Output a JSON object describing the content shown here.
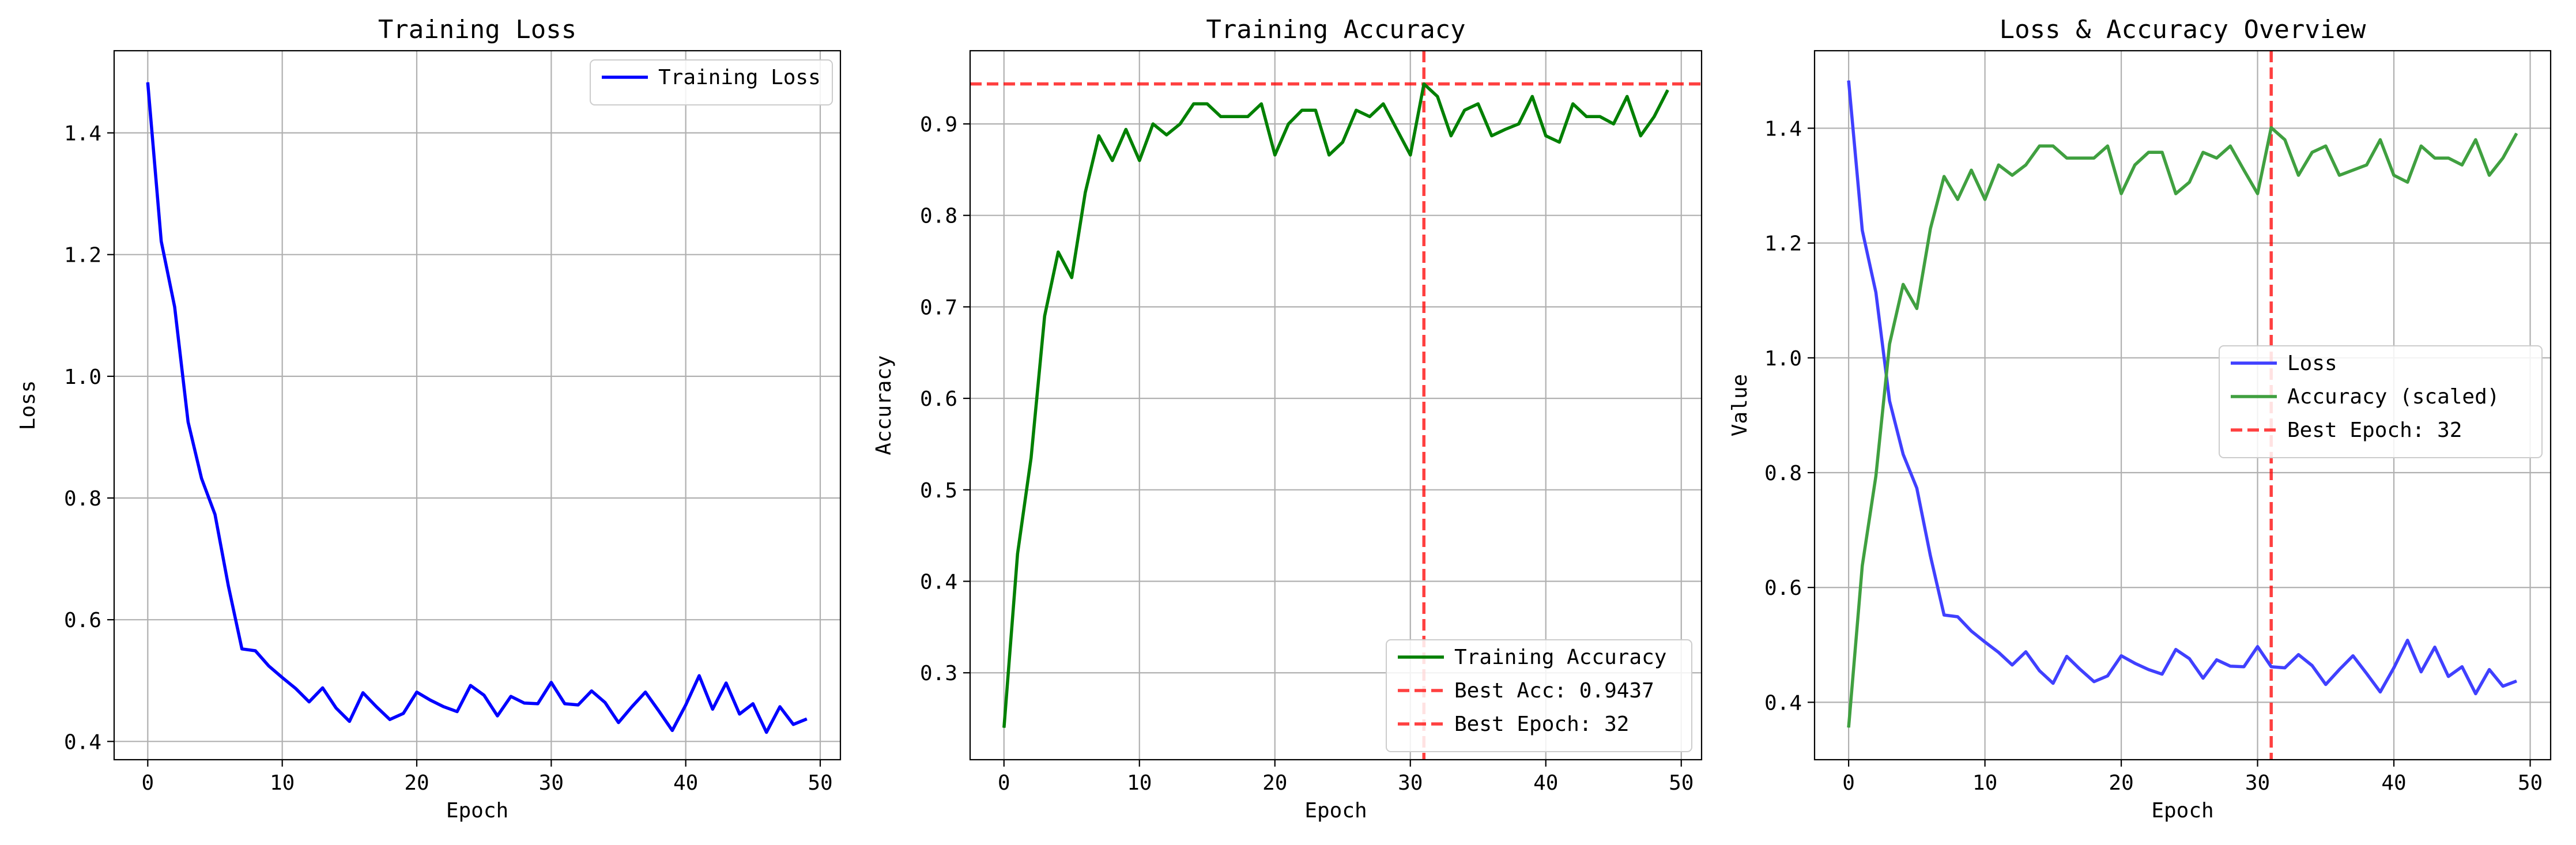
{
  "chart_data": [
    {
      "type": "line",
      "title": "Training Loss",
      "xlabel": "Epoch",
      "ylabel": "Loss",
      "xlim": [
        -2.5,
        51.5
      ],
      "ylim": [
        0.37,
        1.535
      ],
      "xticks": [
        "0",
        "10",
        "20",
        "30",
        "40",
        "50"
      ],
      "yticks": [
        "0.4",
        "0.6",
        "0.8",
        "1.0",
        "1.2",
        "1.4"
      ],
      "grid": true,
      "legend_position": "upper right",
      "legend": [
        "Training Loss"
      ],
      "series": [
        {
          "name": "Training Loss",
          "color": "#0000ff",
          "x": [
            0,
            1,
            2,
            3,
            4,
            5,
            6,
            7,
            8,
            9,
            10,
            11,
            12,
            13,
            14,
            15,
            16,
            17,
            18,
            19,
            20,
            21,
            22,
            23,
            24,
            25,
            26,
            27,
            28,
            29,
            30,
            31,
            32,
            33,
            34,
            35,
            36,
            37,
            38,
            39,
            40,
            41,
            42,
            43,
            44,
            45,
            46,
            47,
            48,
            49
          ],
          "y": [
            1.483,
            1.222,
            1.114,
            0.925,
            0.832,
            0.773,
            0.655,
            0.552,
            0.549,
            0.524,
            0.505,
            0.487,
            0.465,
            0.488,
            0.455,
            0.433,
            0.48,
            0.457,
            0.436,
            0.446,
            0.481,
            0.468,
            0.457,
            0.449,
            0.492,
            0.476,
            0.442,
            0.474,
            0.463,
            0.462,
            0.497,
            0.462,
            0.46,
            0.483,
            0.464,
            0.431,
            0.457,
            0.481,
            0.45,
            0.418,
            0.46,
            0.508,
            0.453,
            0.496,
            0.445,
            0.462,
            0.415,
            0.457,
            0.428,
            0.437
          ]
        }
      ]
    },
    {
      "type": "line",
      "title": "Training Accuracy",
      "xlabel": "Epoch",
      "ylabel": "Accuracy",
      "xlim": [
        -2.5,
        51.5
      ],
      "ylim": [
        0.205,
        0.98
      ],
      "xticks": [
        "0",
        "10",
        "20",
        "30",
        "40",
        "50"
      ],
      "yticks": [
        "0.3",
        "0.4",
        "0.5",
        "0.6",
        "0.7",
        "0.8",
        "0.9"
      ],
      "grid": true,
      "legend_position": "lower right",
      "legend": [
        "Training Accuracy",
        "Best Acc: 0.9437",
        "Best Epoch: 32"
      ],
      "series": [
        {
          "name": "Training Accuracy",
          "color": "#008000",
          "x": [
            0,
            1,
            2,
            3,
            4,
            5,
            6,
            7,
            8,
            9,
            10,
            11,
            12,
            13,
            14,
            15,
            16,
            17,
            18,
            19,
            20,
            21,
            22,
            23,
            24,
            25,
            26,
            27,
            28,
            29,
            30,
            31,
            32,
            33,
            34,
            35,
            36,
            37,
            38,
            39,
            40,
            41,
            42,
            43,
            44,
            45,
            46,
            47,
            48,
            49
          ],
          "y": [
            0.24,
            0.43,
            0.535,
            0.69,
            0.76,
            0.732,
            0.825,
            0.887,
            0.86,
            0.894,
            0.86,
            0.9,
            0.888,
            0.9,
            0.922,
            0.922,
            0.908,
            0.908,
            0.908,
            0.922,
            0.866,
            0.9,
            0.915,
            0.915,
            0.866,
            0.88,
            0.915,
            0.908,
            0.922,
            0.894,
            0.866,
            0.9437,
            0.93,
            0.887,
            0.915,
            0.922,
            0.887,
            0.894,
            0.9,
            0.93,
            0.887,
            0.88,
            0.922,
            0.908,
            0.908,
            0.9,
            0.93,
            0.887,
            0.908,
            0.937
          ]
        }
      ],
      "reference_lines": [
        {
          "orientation": "horizontal",
          "value": 0.9437,
          "color": "#ff0000",
          "style": "dashed"
        },
        {
          "orientation": "vertical",
          "value": 31,
          "color": "#ff0000",
          "style": "dashed"
        }
      ]
    },
    {
      "type": "line",
      "title": "Loss & Accuracy Overview",
      "xlabel": "Epoch",
      "ylabel": "Value",
      "xlim": [
        -2.5,
        51.5
      ],
      "ylim": [
        0.3,
        1.535
      ],
      "xticks": [
        "0",
        "10",
        "20",
        "30",
        "40",
        "50"
      ],
      "yticks": [
        "0.4",
        "0.6",
        "0.8",
        "1.0",
        "1.2",
        "1.4"
      ],
      "grid": true,
      "legend_position": "center right",
      "legend": [
        "Loss",
        "Accuracy (scaled)",
        "Best Epoch: 32"
      ],
      "series": [
        {
          "name": "Loss",
          "color": "#4040ff",
          "x": [
            0,
            1,
            2,
            3,
            4,
            5,
            6,
            7,
            8,
            9,
            10,
            11,
            12,
            13,
            14,
            15,
            16,
            17,
            18,
            19,
            20,
            21,
            22,
            23,
            24,
            25,
            26,
            27,
            28,
            29,
            30,
            31,
            32,
            33,
            34,
            35,
            36,
            37,
            38,
            39,
            40,
            41,
            42,
            43,
            44,
            45,
            46,
            47,
            48,
            49
          ],
          "y": [
            1.483,
            1.222,
            1.114,
            0.925,
            0.832,
            0.773,
            0.655,
            0.552,
            0.549,
            0.524,
            0.505,
            0.487,
            0.465,
            0.488,
            0.455,
            0.433,
            0.48,
            0.457,
            0.436,
            0.446,
            0.481,
            0.468,
            0.457,
            0.449,
            0.492,
            0.476,
            0.442,
            0.474,
            0.463,
            0.462,
            0.497,
            0.462,
            0.46,
            0.483,
            0.464,
            0.431,
            0.457,
            0.481,
            0.45,
            0.418,
            0.46,
            0.508,
            0.453,
            0.496,
            0.445,
            0.462,
            0.415,
            0.457,
            0.428,
            0.437
          ]
        },
        {
          "name": "Accuracy (scaled)",
          "color": "#40a040",
          "x": [
            0,
            1,
            2,
            3,
            4,
            5,
            6,
            7,
            8,
            9,
            10,
            11,
            12,
            13,
            14,
            15,
            16,
            17,
            18,
            19,
            20,
            21,
            22,
            23,
            24,
            25,
            26,
            27,
            28,
            29,
            30,
            31,
            32,
            33,
            34,
            35,
            36,
            37,
            38,
            39,
            40,
            41,
            42,
            43,
            44,
            45,
            46,
            47,
            48,
            49
          ],
          "y": [
            0.356,
            0.638,
            0.794,
            1.024,
            1.128,
            1.086,
            1.225,
            1.316,
            1.276,
            1.327,
            1.276,
            1.336,
            1.318,
            1.336,
            1.369,
            1.369,
            1.348,
            1.348,
            1.348,
            1.369,
            1.286,
            1.336,
            1.358,
            1.358,
            1.286,
            1.306,
            1.358,
            1.348,
            1.369,
            1.327,
            1.286,
            1.401,
            1.38,
            1.318,
            1.358,
            1.369,
            1.318,
            1.327,
            1.336,
            1.38,
            1.318,
            1.306,
            1.369,
            1.348,
            1.348,
            1.336,
            1.38,
            1.318,
            1.348,
            1.391
          ]
        }
      ],
      "reference_lines": [
        {
          "orientation": "vertical",
          "value": 31,
          "color": "#ff0000",
          "style": "dashed"
        }
      ]
    }
  ]
}
